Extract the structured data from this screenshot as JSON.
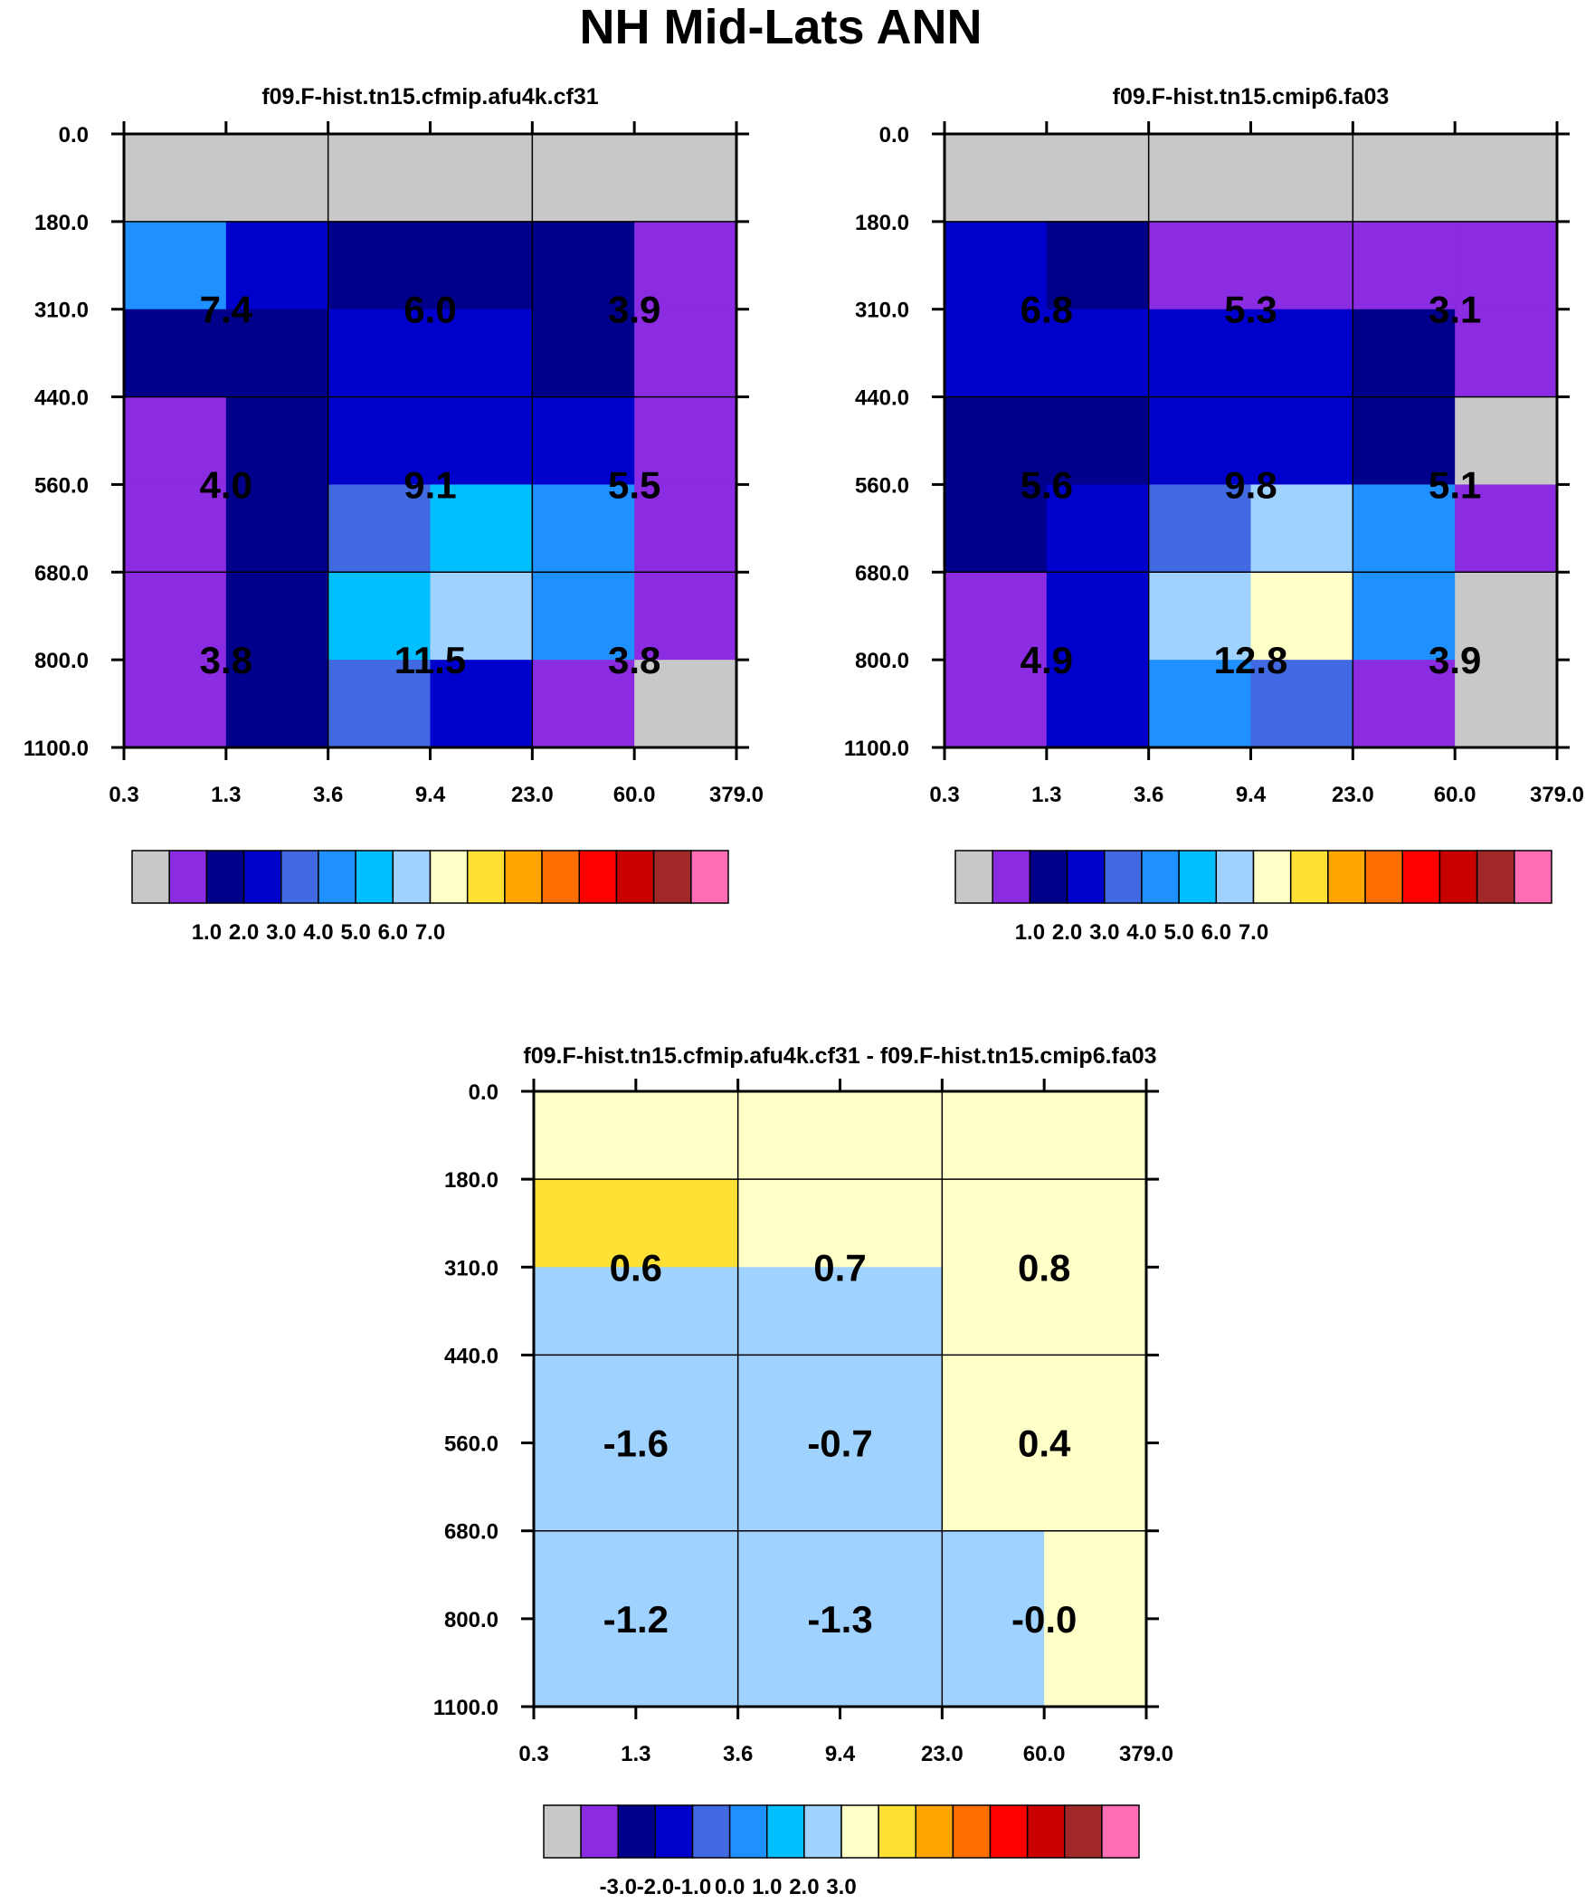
{
  "figure_title": "NH Mid-Lats ANN",
  "chart_data": [
    {
      "type": "heatmap",
      "title": "f09.F-hist.tn15.cfmip.afu4k.cf31",
      "x_ticks": [
        "0.3",
        "1.3",
        "3.6",
        "9.4",
        "23.0",
        "60.0",
        "379.0"
      ],
      "y_ticks": [
        "0.0",
        "180.0",
        "310.0",
        "440.0",
        "560.0",
        "680.0",
        "800.0",
        "1100.0"
      ],
      "cell_color_index": [
        [
          0,
          0,
          0,
          0,
          0,
          0
        ],
        [
          5,
          3,
          2,
          2,
          2,
          1
        ],
        [
          2,
          2,
          3,
          3,
          2,
          1
        ],
        [
          1,
          2,
          3,
          3,
          3,
          1
        ],
        [
          1,
          2,
          4,
          6,
          5,
          1
        ],
        [
          1,
          2,
          6,
          7,
          5,
          1
        ],
        [
          1,
          2,
          4,
          3,
          1,
          0
        ]
      ],
      "block_labels": [
        [
          "7.4",
          "6.0",
          "3.9"
        ],
        [
          "4.0",
          "9.1",
          "5.5"
        ],
        [
          "3.8",
          "11.5",
          "3.8"
        ]
      ],
      "colorbar": {
        "colors": [
          "#c8c8c8",
          "#8b2be2",
          "#00008b",
          "#0000cd",
          "#4169e1",
          "#1e90ff",
          "#00bfff",
          "#a0d2ff",
          "#ffffc8",
          "#ffe034",
          "#ffa500",
          "#ff6e00",
          "#ff0000",
          "#c80000",
          "#a02828",
          "#ff6eb4"
        ],
        "labels": [
          "1.0",
          "2.0",
          "3.0",
          "4.0",
          "5.0",
          "6.0",
          "7.0"
        ]
      }
    },
    {
      "type": "heatmap",
      "title": "f09.F-hist.tn15.cmip6.fa03",
      "x_ticks": [
        "0.3",
        "1.3",
        "3.6",
        "9.4",
        "23.0",
        "60.0",
        "379.0"
      ],
      "y_ticks": [
        "0.0",
        "180.0",
        "310.0",
        "440.0",
        "560.0",
        "680.0",
        "800.0",
        "1100.0"
      ],
      "cell_color_index": [
        [
          0,
          0,
          0,
          0,
          0,
          0
        ],
        [
          3,
          2,
          1,
          1,
          1,
          1
        ],
        [
          3,
          3,
          3,
          3,
          2,
          1
        ],
        [
          2,
          2,
          3,
          3,
          2,
          0
        ],
        [
          2,
          3,
          4,
          7,
          5,
          1
        ],
        [
          1,
          3,
          7,
          8,
          5,
          0
        ],
        [
          1,
          3,
          5,
          4,
          1,
          0
        ]
      ],
      "block_labels": [
        [
          "6.8",
          "5.3",
          "3.1"
        ],
        [
          "5.6",
          "9.8",
          "5.1"
        ],
        [
          "4.9",
          "12.8",
          "3.9"
        ]
      ],
      "colorbar": {
        "colors": [
          "#c8c8c8",
          "#8b2be2",
          "#00008b",
          "#0000cd",
          "#4169e1",
          "#1e90ff",
          "#00bfff",
          "#a0d2ff",
          "#ffffc8",
          "#ffe034",
          "#ffa500",
          "#ff6e00",
          "#ff0000",
          "#c80000",
          "#a02828",
          "#ff6eb4"
        ],
        "labels": [
          "1.0",
          "2.0",
          "3.0",
          "4.0",
          "5.0",
          "6.0",
          "7.0"
        ]
      }
    },
    {
      "type": "heatmap",
      "title": "f09.F-hist.tn15.cfmip.afu4k.cf31 - f09.F-hist.tn15.cmip6.fa03",
      "x_ticks": [
        "0.3",
        "1.3",
        "3.6",
        "9.4",
        "23.0",
        "60.0",
        "379.0"
      ],
      "y_ticks": [
        "0.0",
        "180.0",
        "310.0",
        "440.0",
        "560.0",
        "680.0",
        "800.0",
        "1100.0"
      ],
      "cell_color_index": [
        [
          8,
          8,
          8,
          8,
          8,
          8
        ],
        [
          9,
          9,
          8,
          8,
          8,
          8
        ],
        [
          7,
          7,
          7,
          7,
          8,
          8
        ],
        [
          7,
          7,
          7,
          7,
          8,
          8
        ],
        [
          7,
          7,
          7,
          7,
          8,
          8
        ],
        [
          7,
          7,
          7,
          7,
          7,
          8
        ],
        [
          7,
          7,
          7,
          7,
          7,
          8
        ]
      ],
      "block_labels": [
        [
          "0.6",
          "0.7",
          "0.8"
        ],
        [
          "-1.6",
          "-0.7",
          "0.4"
        ],
        [
          "-1.2",
          "-1.3",
          "-0.0"
        ]
      ],
      "colorbar": {
        "colors": [
          "#c8c8c8",
          "#8b2be2",
          "#00008b",
          "#0000cd",
          "#4169e1",
          "#1e90ff",
          "#00bfff",
          "#a0d2ff",
          "#ffffc8",
          "#ffe034",
          "#ffa500",
          "#ff6e00",
          "#ff0000",
          "#c80000",
          "#a02828",
          "#ff6eb4"
        ],
        "labels": [
          "-3.0",
          "-2.0",
          "-1.0",
          "0.0",
          "1.0",
          "2.0",
          "3.0"
        ]
      }
    }
  ]
}
